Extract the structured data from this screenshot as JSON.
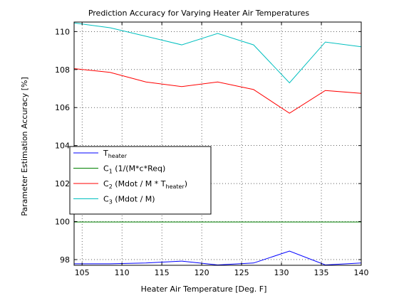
{
  "chart_data": {
    "type": "line",
    "title": "Prediction Accuracy for Varying Heater Air Temperatures",
    "xlabel": "Heater Air Temperature [Deg. F]",
    "ylabel": "Parameter Estimation Accuracy [%]",
    "xlim": [
      104,
      140
    ],
    "ylim": [
      97.7,
      110.5
    ],
    "x_ticks": [
      105,
      110,
      115,
      120,
      125,
      130,
      135,
      140
    ],
    "y_ticks": [
      98,
      100,
      102,
      104,
      106,
      108,
      110
    ],
    "grid": true,
    "legend_position": "lower-left",
    "x": [
      104,
      108.5,
      113,
      117.5,
      122,
      126.5,
      131,
      135.5,
      140
    ],
    "series": [
      {
        "name": "T_heater",
        "legend": {
          "base": "T",
          "sub": "heater",
          "rest": "",
          "sub2": "",
          "end": ""
        },
        "color": "#0000ff",
        "values": [
          97.78,
          97.78,
          97.82,
          97.92,
          97.72,
          97.82,
          98.45,
          97.72,
          97.82
        ]
      },
      {
        "name": "C_1 (1/(M*c*Req)",
        "legend": {
          "base": "C",
          "sub": "1",
          "rest": " (1/(M*c*Req)",
          "sub2": "",
          "end": ""
        },
        "color": "#008000",
        "values": [
          99.98,
          99.98,
          99.98,
          99.98,
          99.98,
          99.98,
          99.98,
          99.98,
          99.98
        ]
      },
      {
        "name": "C_2 (Mdot / M * T_heater)",
        "legend": {
          "base": "C",
          "sub": "2",
          "rest": " (Mdot / M * T",
          "sub2": "heater",
          "end": ")"
        },
        "color": "#ff0000",
        "values": [
          108.05,
          107.85,
          107.35,
          107.1,
          107.35,
          106.95,
          105.7,
          106.9,
          106.75
        ]
      },
      {
        "name": "C_3 (Mdot / M)",
        "legend": {
          "base": "C",
          "sub": "3",
          "rest": " (Mdot / M)",
          "sub2": "",
          "end": ""
        },
        "color": "#00bfbf",
        "values": [
          110.45,
          110.2,
          109.75,
          109.3,
          109.9,
          109.3,
          107.3,
          109.45,
          109.2
        ]
      }
    ]
  }
}
